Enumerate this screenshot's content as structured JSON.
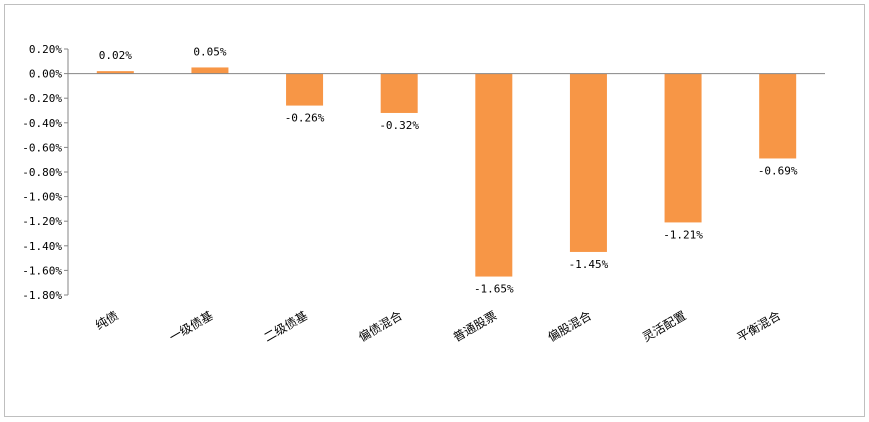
{
  "chart_data": {
    "type": "bar",
    "categories": [
      "纯债",
      "一级债基",
      "二级债基",
      "偏债混合",
      "普通股票",
      "偏股混合",
      "灵活配置",
      "平衡混合"
    ],
    "values": [
      0.02,
      0.05,
      -0.26,
      -0.32,
      -1.65,
      -1.45,
      -1.21,
      -0.69
    ],
    "value_labels": [
      "0.02%",
      "0.05%",
      "-0.26%",
      "-0.32%",
      "-1.65%",
      "-1.45%",
      "-1.21%",
      "-0.69%"
    ],
    "y_ticks": [
      0.2,
      0.0,
      -0.2,
      -0.4,
      -0.6,
      -0.8,
      -1.0,
      -1.2,
      -1.4,
      -1.6,
      -1.8
    ],
    "y_tick_labels": [
      "0.20%",
      "0.00%",
      "-0.20%",
      "-0.40%",
      "-0.60%",
      "-0.80%",
      "-1.00%",
      "-1.20%",
      "-1.40%",
      "-1.60%",
      "-1.80%"
    ],
    "ylim": [
      -1.8,
      0.2
    ],
    "title": "",
    "xlabel": "",
    "ylabel": "",
    "grid": false,
    "bar_color": "#F79646",
    "axis_color": "#868686"
  }
}
